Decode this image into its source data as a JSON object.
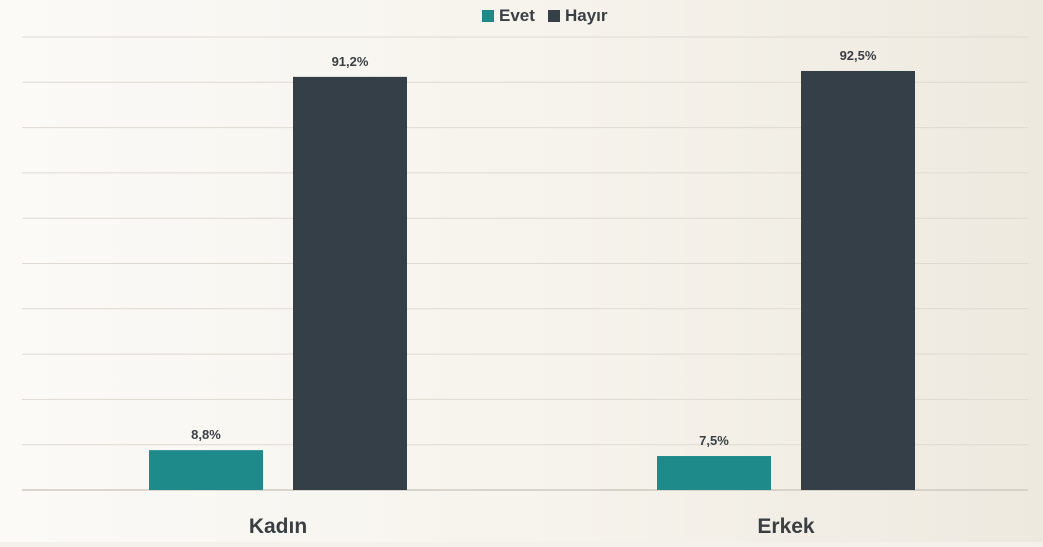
{
  "chart_data": {
    "type": "bar",
    "categories": [
      "Kadın",
      "Erkek"
    ],
    "series": [
      {
        "name": "Evet",
        "values": [
          8.8,
          7.5
        ],
        "labels": [
          "8,8%",
          "7,5%"
        ],
        "color": "#1f8a8a"
      },
      {
        "name": "Hayır",
        "values": [
          91.2,
          92.5
        ],
        "labels": [
          "91,2%",
          "92,5%"
        ],
        "color": "#343f48"
      }
    ],
    "ylim": [
      0,
      100
    ],
    "grid": true,
    "legend": "top-center",
    "title": "",
    "xlabel": "",
    "ylabel": ""
  }
}
